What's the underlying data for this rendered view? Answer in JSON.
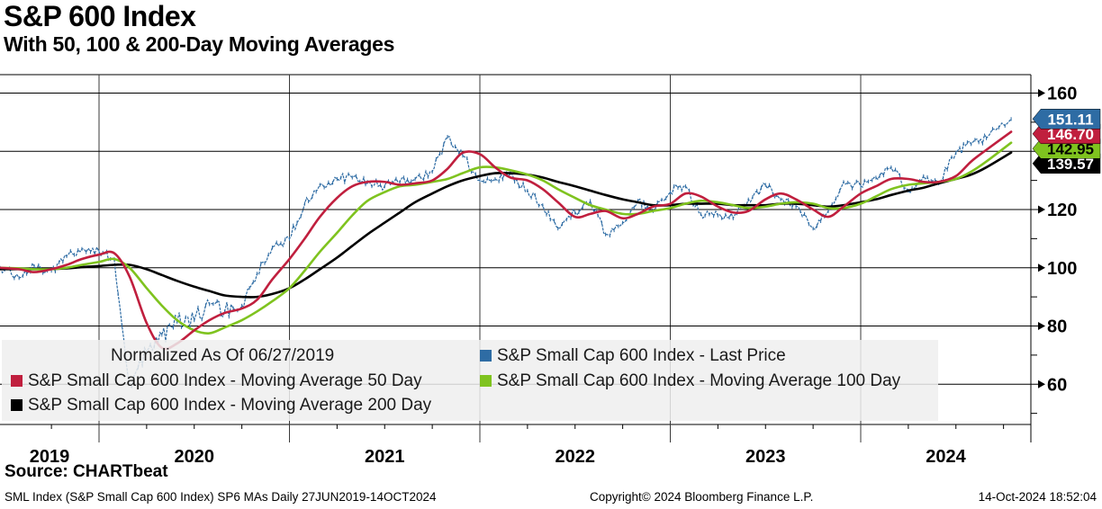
{
  "header": {
    "title": "S&P 600 Index",
    "subtitle": "With 50, 100 & 200-Day Moving Averages"
  },
  "chart_data": {
    "type": "line",
    "title": "S&P 600 Index",
    "subtitle": "With 50, 100 & 200-Day Moving Averages",
    "note": "Normalized As Of 06/27/2019",
    "x_unit": "decimal_year",
    "x_range": [
      "27JUN2019",
      "14OCT2024"
    ],
    "x_tick_labels": [
      "2019",
      "2020",
      "2021",
      "2022",
      "2023",
      "2024"
    ],
    "y_ticks": [
      160,
      140,
      120,
      100,
      80,
      60
    ],
    "y_minor_ticks": [
      150,
      130,
      110,
      90,
      70,
      50
    ],
    "ylim": [
      46,
      166
    ],
    "grid": true,
    "legend_position": "bottom-left-overlay",
    "x": [
      2019.48,
      2019.58,
      2019.66,
      2019.75,
      2019.83,
      2019.91,
      2020.0,
      2020.08,
      2020.16,
      2020.25,
      2020.33,
      2020.41,
      2020.5,
      2020.58,
      2020.66,
      2020.75,
      2020.83,
      2020.91,
      2021.0,
      2021.08,
      2021.16,
      2021.25,
      2021.33,
      2021.41,
      2021.5,
      2021.58,
      2021.66,
      2021.75,
      2021.83,
      2021.91,
      2022.0,
      2022.08,
      2022.16,
      2022.25,
      2022.33,
      2022.41,
      2022.5,
      2022.58,
      2022.66,
      2022.75,
      2022.83,
      2022.91,
      2023.0,
      2023.08,
      2023.16,
      2023.25,
      2023.33,
      2023.41,
      2023.5,
      2023.58,
      2023.66,
      2023.75,
      2023.83,
      2023.91,
      2024.0,
      2024.08,
      2024.16,
      2024.25,
      2024.33,
      2024.41,
      2024.5,
      2024.58,
      2024.66,
      2024.79
    ],
    "series": [
      {
        "name": "S&P Small Cap 600 Index - Last Price",
        "color": "#2e6ca4",
        "noisy": true,
        "last_label": "151.11",
        "label_text_color": "#ffffff",
        "values": [
          100.0,
          96.5,
          100.5,
          99.0,
          104.0,
          106.5,
          105.5,
          103.0,
          60.0,
          71.0,
          77.0,
          81.5,
          82.0,
          87.5,
          85.0,
          87.0,
          98.0,
          107.0,
          110.0,
          122.0,
          128.5,
          130.5,
          131.0,
          129.5,
          128.0,
          129.5,
          130.5,
          133.0,
          145.0,
          138.5,
          130.0,
          130.5,
          132.5,
          126.5,
          121.5,
          113.5,
          119.0,
          123.0,
          111.5,
          115.5,
          123.0,
          119.5,
          126.0,
          128.0,
          118.5,
          118.0,
          117.0,
          123.5,
          128.5,
          123.5,
          121.0,
          113.5,
          119.5,
          129.5,
          128.0,
          131.0,
          134.5,
          126.5,
          131.5,
          129.0,
          139.5,
          142.5,
          144.5,
          151.11
        ]
      },
      {
        "name": "S&P Small Cap 600 Index - Moving Average 50 Day",
        "color": "#c01f3e",
        "noisy": false,
        "last_label": "146.70",
        "label_text_color": "#ffffff",
        "values": [
          100.0,
          99.5,
          98.5,
          99.5,
          101.0,
          103.0,
          104.5,
          105.0,
          97.0,
          81.0,
          72.5,
          74.0,
          78.5,
          82.0,
          84.5,
          86.0,
          89.0,
          96.0,
          103.0,
          110.0,
          117.5,
          124.0,
          128.0,
          129.5,
          129.5,
          128.5,
          129.0,
          130.0,
          134.0,
          139.5,
          139.0,
          134.5,
          131.0,
          130.0,
          127.0,
          122.5,
          117.5,
          118.5,
          119.5,
          117.0,
          118.5,
          121.0,
          122.0,
          125.5,
          124.5,
          121.0,
          119.0,
          119.5,
          123.5,
          125.5,
          123.5,
          120.0,
          117.5,
          121.0,
          125.5,
          128.0,
          130.5,
          130.5,
          129.5,
          129.5,
          131.5,
          136.5,
          140.5,
          146.7
        ]
      },
      {
        "name": "S&P Small Cap 600 Index - Moving Average 100 Day",
        "color": "#7fc31f",
        "noisy": false,
        "last_label": "142.95",
        "label_text_color": "#000000",
        "values": [
          100.0,
          99.8,
          99.5,
          99.5,
          100.0,
          101.0,
          102.0,
          103.0,
          100.0,
          93.0,
          87.0,
          82.0,
          78.5,
          77.5,
          79.5,
          82.0,
          85.0,
          88.5,
          93.0,
          99.0,
          105.5,
          112.0,
          118.0,
          123.0,
          126.0,
          128.0,
          128.5,
          129.5,
          130.5,
          132.5,
          134.5,
          134.5,
          133.5,
          132.0,
          130.0,
          127.0,
          124.0,
          121.5,
          120.0,
          118.5,
          118.5,
          119.5,
          120.5,
          122.0,
          123.0,
          122.5,
          121.5,
          120.5,
          121.0,
          122.0,
          122.5,
          122.0,
          120.5,
          120.5,
          122.0,
          124.5,
          127.0,
          128.5,
          129.0,
          129.5,
          130.5,
          133.0,
          136.5,
          142.95
        ]
      },
      {
        "name": "S&P Small Cap 600 Index - Moving Average 200 Day",
        "color": "#000000",
        "noisy": false,
        "last_label": "139.57",
        "label_text_color": "#ffffff",
        "values": [
          99.5,
          99.5,
          99.5,
          99.6,
          99.8,
          100.2,
          100.6,
          101.0,
          101.0,
          99.5,
          97.5,
          95.5,
          93.5,
          92.0,
          90.5,
          90.0,
          90.0,
          91.0,
          93.0,
          96.0,
          99.5,
          103.5,
          107.5,
          111.5,
          115.5,
          119.0,
          122.5,
          125.5,
          128.0,
          130.0,
          131.5,
          132.5,
          132.5,
          132.0,
          131.0,
          129.5,
          128.0,
          126.5,
          125.0,
          123.5,
          122.5,
          121.5,
          121.5,
          122.0,
          122.0,
          122.0,
          121.5,
          121.5,
          121.5,
          122.0,
          122.0,
          121.5,
          121.0,
          121.5,
          122.5,
          123.5,
          125.0,
          126.5,
          127.5,
          129.0,
          130.5,
          132.0,
          134.5,
          139.57
        ]
      }
    ]
  },
  "footer": {
    "source": "Source: CHARTbeat",
    "meta_left": "SML Index (S&P Small Cap 600 Index) SP6 MAs  Daily 27JUN2019-14OCT2024",
    "meta_center": "Copyright© 2024 Bloomberg Finance L.P.",
    "meta_right": "14-Oct-2024 18:52:04"
  }
}
